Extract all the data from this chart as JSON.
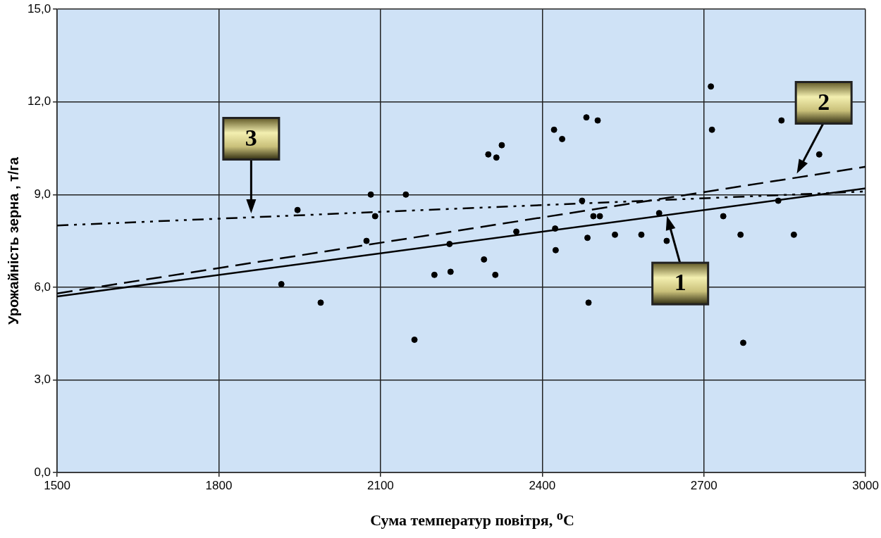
{
  "chart_data": {
    "type": "scatter",
    "xlabel": "Сума температур повітря, $^{o}$C",
    "ylabel": "Урожайність зерна , т/га",
    "xlim": [
      1500,
      3000
    ],
    "xticks": [
      1500,
      1800,
      2100,
      2400,
      2700,
      3000
    ],
    "ylim": [
      0,
      15
    ],
    "yticks": [
      {
        "value": 0,
        "label": "0,0"
      },
      {
        "value": 3,
        "label": "3,0"
      },
      {
        "value": 6,
        "label": "6,0"
      },
      {
        "value": 9,
        "label": "9,0"
      },
      {
        "value": 12,
        "label": "12,0"
      },
      {
        "value": 15,
        "label": "15,0"
      }
    ],
    "grid": true,
    "legend": false,
    "series": [
      {
        "color": "#000000",
        "marker": "circle",
        "x": [
          1916,
          1946,
          1989,
          2074,
          2082,
          2090,
          2147,
          2163,
          2200,
          2228,
          2230,
          2292,
          2300,
          2313,
          2315,
          2325,
          2352,
          2422,
          2424,
          2425,
          2437,
          2474,
          2482,
          2484,
          2486,
          2495,
          2503,
          2507,
          2535,
          2584,
          2617,
          2631,
          2713,
          2715,
          2736,
          2768,
          2773,
          2838,
          2844,
          2867,
          2914
        ],
        "values": [
          6.1,
          8.5,
          5.5,
          7.5,
          9.0,
          8.3,
          9.0,
          4.3,
          6.4,
          7.4,
          6.5,
          6.9,
          10.3,
          6.4,
          10.2,
          10.6,
          7.8,
          11.1,
          7.9,
          7.2,
          10.8,
          8.8,
          11.5,
          7.6,
          5.5,
          8.3,
          11.4,
          8.3,
          7.7,
          7.7,
          8.4,
          7.5,
          12.5,
          11.1,
          8.3,
          7.7,
          4.2,
          8.8,
          11.4,
          7.7,
          10.3
        ]
      },
      {
        "type": "line",
        "color": "#000000",
        "marker": "none",
        "line_style": "solid",
        "x": [
          1500,
          3000
        ],
        "values": [
          5.7,
          9.2
        ]
      },
      {
        "type": "line",
        "color": "#000000",
        "marker": "none",
        "line_style": "dashed",
        "x": [
          1500,
          3000
        ],
        "values": [
          5.8,
          9.9
        ]
      },
      {
        "type": "line",
        "color": "#000000",
        "marker": "none",
        "line_style": "dotted",
        "x": [
          1500,
          3000
        ],
        "values": [
          8.0,
          9.1
        ]
      }
    ],
    "annotations": [
      {
        "text": "1",
        "x": 2630,
        "y": 8.4
      },
      {
        "text": "2",
        "x": 2870,
        "y": 9.6
      },
      {
        "text": "3",
        "x": 1860,
        "y": 8.3
      }
    ]
  }
}
